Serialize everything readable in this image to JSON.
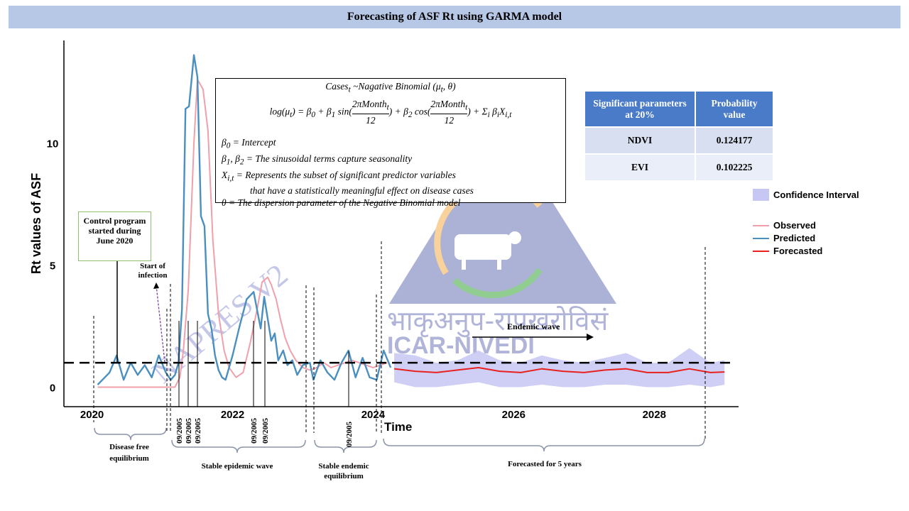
{
  "title": "Forecasting of ASF Rt using GARMA model",
  "equation": {
    "line1": "Cases_t ~Nagative Binomial (μ_t, θ)",
    "line2": "log(μ_t) = β0 + β1 sin(2πMonth_t/12) + β2 cos(2πMonth_t/12) + Σ_i β_i X_i,t",
    "def1": "β0 = Intercept",
    "def2": "β1, β2 = The sinusoidal terms capture seasonality",
    "def3a": "X_i,t = Represents the subset of significant predictor variables",
    "def3b": "that have a statistically meaningful effect on disease cases",
    "def4": "θ = The dispersion parameter of the Negative Binomial model"
  },
  "table": {
    "headers": [
      "Significant parameters at 20%",
      "Probability value"
    ],
    "rows": [
      [
        "NDVI",
        "0.124177"
      ],
      [
        "EVI",
        "0.102225"
      ]
    ]
  },
  "legend": {
    "ci": "Confidence Interval",
    "observed": "Observed",
    "predicted": "Predicted",
    "forecasted": "Forecasted"
  },
  "control_box": "Control program started during June 2020",
  "annotations": {
    "start_infection": "Start of infection",
    "endemic_wave": "Endemic wave",
    "date_marks": [
      "09/2005",
      "09/2005",
      "09/2005",
      "09/2005",
      "09/2005",
      "09/2005"
    ]
  },
  "phases": [
    {
      "label": "Disease free equilibrium"
    },
    {
      "label": "Stable epidemic wave"
    },
    {
      "label": "Stable endemic equilibrium"
    },
    {
      "label": "Forecasted for 5 years"
    }
  ],
  "watermark": {
    "text1": "NAPRES V2",
    "text2": "भाकृअनुप-रापखरोविसं",
    "text3": "ICAR-NIVEDI"
  },
  "colors": {
    "observed": "#f0a0aa",
    "predicted": "#4a8fc0",
    "forecasted": "#e8201e",
    "ci": "#c7c7f3",
    "title_bg": "#b7c7e6"
  },
  "chart_data": {
    "type": "line",
    "xlabel": "Time",
    "ylabel": "Rt values of ASF",
    "xticks": [
      2020,
      2022,
      2024,
      2026,
      2028
    ],
    "yticks": [
      0,
      5,
      10
    ],
    "xlim": [
      2019.6,
      2029.2
    ],
    "ylim": [
      -0.8,
      14.2
    ],
    "threshold": 1,
    "series": [
      {
        "name": "Observed",
        "x": [
          2020.08,
          2020.25,
          2020.4,
          2020.6,
          2020.8,
          2021.0,
          2021.1,
          2021.18,
          2021.25,
          2021.3,
          2021.37,
          2021.45,
          2021.5,
          2021.58,
          2021.65,
          2021.72,
          2021.8,
          2021.88,
          2021.95,
          2022.05,
          2022.15,
          2022.25,
          2022.35,
          2022.42,
          2022.5,
          2022.55,
          2022.62,
          2022.68,
          2022.75,
          2022.82,
          2022.9,
          2023.0,
          2023.1,
          2023.2,
          2023.3,
          2023.4,
          2023.5,
          2023.6,
          2023.7,
          2023.8,
          2023.9,
          2024.0,
          2024.1,
          2024.2
        ],
        "values": [
          0,
          0,
          0,
          0,
          0,
          0,
          0,
          0,
          0.4,
          1.5,
          4.0,
          10.0,
          12.6,
          12.2,
          10.5,
          6.0,
          3.0,
          1.5,
          0.8,
          0.4,
          0.6,
          1.8,
          3.2,
          4.3,
          4.5,
          4.2,
          3.6,
          2.8,
          2.0,
          1.5,
          1.1,
          0.8,
          0.7,
          0.8,
          1.0,
          0.8,
          0.9,
          1.0,
          1.1,
          1.0,
          0.9,
          0.8,
          0.9,
          1.0
        ]
      },
      {
        "name": "Predicted",
        "x": [
          2020.08,
          2020.25,
          2020.35,
          2020.45,
          2020.55,
          2020.65,
          2020.75,
          2020.85,
          2020.95,
          2021.05,
          2021.12,
          2021.18,
          2021.23,
          2021.28,
          2021.33,
          2021.38,
          2021.45,
          2021.5,
          2021.55,
          2021.6,
          2021.65,
          2021.7,
          2021.75,
          2021.8,
          2021.85,
          2021.9,
          2022.0,
          2022.1,
          2022.2,
          2022.3,
          2022.4,
          2022.45,
          2022.55,
          2022.6,
          2022.65,
          2022.72,
          2022.78,
          2022.85,
          2022.92,
          2023.0,
          2023.1,
          2023.15,
          2023.25,
          2023.35,
          2023.45,
          2023.55,
          2023.65,
          2023.75,
          2023.85,
          2023.95,
          2024.05,
          2024.15,
          2024.25
        ],
        "values": [
          0.1,
          0.6,
          1.3,
          0.3,
          1.0,
          0.5,
          0.9,
          0.4,
          1.3,
          0.6,
          0.3,
          0.5,
          1.0,
          3.2,
          11.4,
          11.5,
          13.6,
          12.7,
          7.0,
          6.6,
          3.0,
          2.4,
          1.3,
          0.7,
          0.4,
          0.3,
          1.3,
          2.5,
          3.6,
          3.9,
          2.4,
          3.7,
          1.9,
          2.2,
          1.1,
          1.5,
          0.9,
          1.1,
          0.5,
          0.9,
          1.0,
          0.3,
          1.1,
          0.6,
          0.3,
          1.0,
          1.5,
          0.4,
          1.2,
          0.4,
          0.3,
          1.5,
          0.8
        ]
      },
      {
        "name": "Forecasted",
        "x": [
          2024.3,
          2024.6,
          2024.9,
          2025.2,
          2025.5,
          2025.8,
          2026.1,
          2026.4,
          2026.7,
          2027.0,
          2027.3,
          2027.6,
          2027.9,
          2028.2,
          2028.5,
          2028.8,
          2029.0
        ],
        "values": [
          0.75,
          0.65,
          0.6,
          0.7,
          0.8,
          0.65,
          0.6,
          0.75,
          0.65,
          0.6,
          0.7,
          0.75,
          0.6,
          0.6,
          0.75,
          0.6,
          0.62
        ]
      },
      {
        "name": "Confidence Interval",
        "x": [
          2024.3,
          2024.6,
          2024.9,
          2025.2,
          2025.5,
          2025.8,
          2026.1,
          2026.4,
          2026.7,
          2027.0,
          2027.3,
          2027.6,
          2027.9,
          2028.2,
          2028.5,
          2028.8,
          2029.0
        ],
        "upper": [
          1.4,
          1.3,
          1.0,
          1.1,
          1.5,
          1.1,
          1.0,
          1.3,
          1.1,
          1.0,
          1.2,
          1.4,
          1.0,
          1.0,
          1.6,
          1.0,
          1.1
        ],
        "lower": [
          0.2,
          0.0,
          0.0,
          0.1,
          0.2,
          0.0,
          0.0,
          0.1,
          0.0,
          0.0,
          0.1,
          0.1,
          0.0,
          0.0,
          0.1,
          0.0,
          0.1
        ]
      }
    ]
  }
}
